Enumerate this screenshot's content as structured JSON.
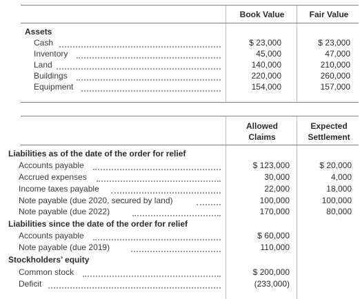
{
  "top_table": {
    "col1_header": "Book Value",
    "col2_header": "Fair Value",
    "section_title": "Assets",
    "rows": [
      {
        "label": "Cash",
        "book": "$ 23,000",
        "fair": "$ 23,000"
      },
      {
        "label": "Inventory",
        "book": "45,000",
        "fair": "47,000"
      },
      {
        "label": "Land",
        "book": "140,000",
        "fair": "210,000"
      },
      {
        "label": "Buildings",
        "book": "220,000",
        "fair": "260,000"
      },
      {
        "label": "Equipment",
        "book": "154,000",
        "fair": "157,000"
      }
    ]
  },
  "bottom_table": {
    "col1_header_line1": "Allowed",
    "col1_header_line2": "Claims",
    "col2_header_line1": "Expected",
    "col2_header_line2": "Settlement",
    "sections": [
      {
        "title": "Liabilities as of the date of the order for relief",
        "rows": [
          {
            "label": "Accounts payable",
            "allowed": "$ 123,000",
            "expected": "$ 20,000"
          },
          {
            "label": "Accrued expenses",
            "allowed": "30,000",
            "expected": "4,000"
          },
          {
            "label": "Income taxes payable",
            "allowed": "22,000",
            "expected": "18,000"
          },
          {
            "label": "Note payable (due 2020, secured by land)",
            "allowed": "100,000",
            "expected": "100,000"
          },
          {
            "label": "Note payable (due 2022)",
            "allowed": "170,000",
            "expected": "80,000"
          }
        ]
      },
      {
        "title": "Liabilities since the date of the order for relief",
        "rows": [
          {
            "label": "Accounts payable",
            "allowed": "$ 60,000",
            "expected": ""
          },
          {
            "label": "Note payable (due 2019)",
            "allowed": "110,000",
            "expected": ""
          }
        ]
      },
      {
        "title": "Stockholders’ equity",
        "rows": [
          {
            "label": "Common stock",
            "allowed": "$ 200,000",
            "expected": ""
          },
          {
            "label": "Deficit",
            "allowed": "(233,000)",
            "expected": ""
          }
        ]
      }
    ]
  }
}
